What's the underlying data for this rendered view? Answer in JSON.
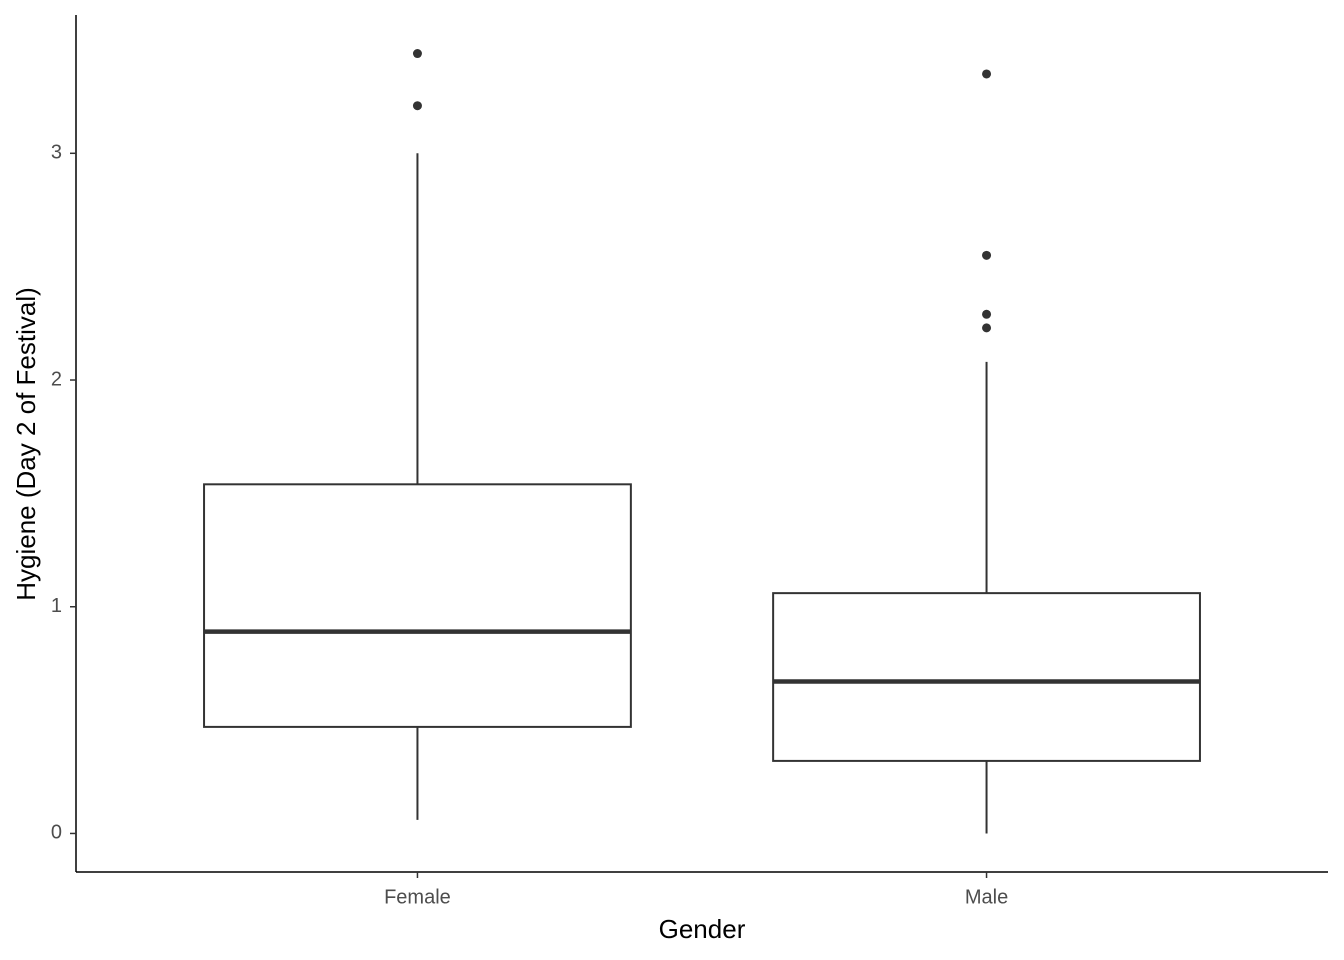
{
  "chart_data": {
    "type": "box",
    "xlabel": "Gender",
    "ylabel": "Hygiene (Day 2 of Festival)",
    "categories": [
      "Female",
      "Male"
    ],
    "boxes": [
      {
        "min": 0.06,
        "q1": 0.47,
        "median": 0.89,
        "q3": 1.54,
        "max": 3.0,
        "outliers": [
          3.44,
          3.21
        ]
      },
      {
        "min": 0,
        "q1": 0.32,
        "median": 0.67,
        "q3": 1.06,
        "max": 2.08,
        "outliers": [
          3.35,
          2.55,
          2.29,
          2.23
        ]
      }
    ],
    "color": "#333333",
    "fill": "#ffffff",
    "ylim": [
      -0.17,
      3.61
    ],
    "yticks": [
      0,
      1,
      2,
      3
    ],
    "grid": false
  }
}
